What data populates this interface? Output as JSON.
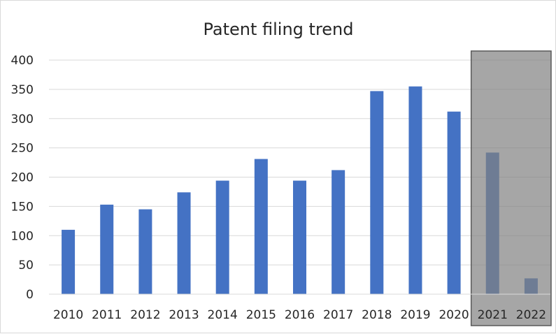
{
  "chart_data": {
    "type": "bar",
    "title": "Patent filing trend",
    "xlabel": "",
    "ylabel": "",
    "categories": [
      "2010",
      "2011",
      "2012",
      "2013",
      "2014",
      "2015",
      "2016",
      "2017",
      "2018",
      "2019",
      "2020",
      "2021",
      "2022"
    ],
    "values": [
      110,
      153,
      145,
      174,
      194,
      231,
      194,
      212,
      347,
      355,
      312,
      242,
      27
    ],
    "ylim": [
      0,
      400
    ],
    "yticks": [
      "0",
      "50",
      "100",
      "150",
      "200",
      "250",
      "300",
      "350",
      "400"
    ],
    "grid": true,
    "legend": "none",
    "highlighted_categories": [
      "2021",
      "2022"
    ],
    "colors": {
      "bar": "#4472C4",
      "highlight_fill": "#808080",
      "highlight_border": "#595959",
      "grid": "#d9d9d9",
      "axis": "#d9d9d9"
    }
  }
}
